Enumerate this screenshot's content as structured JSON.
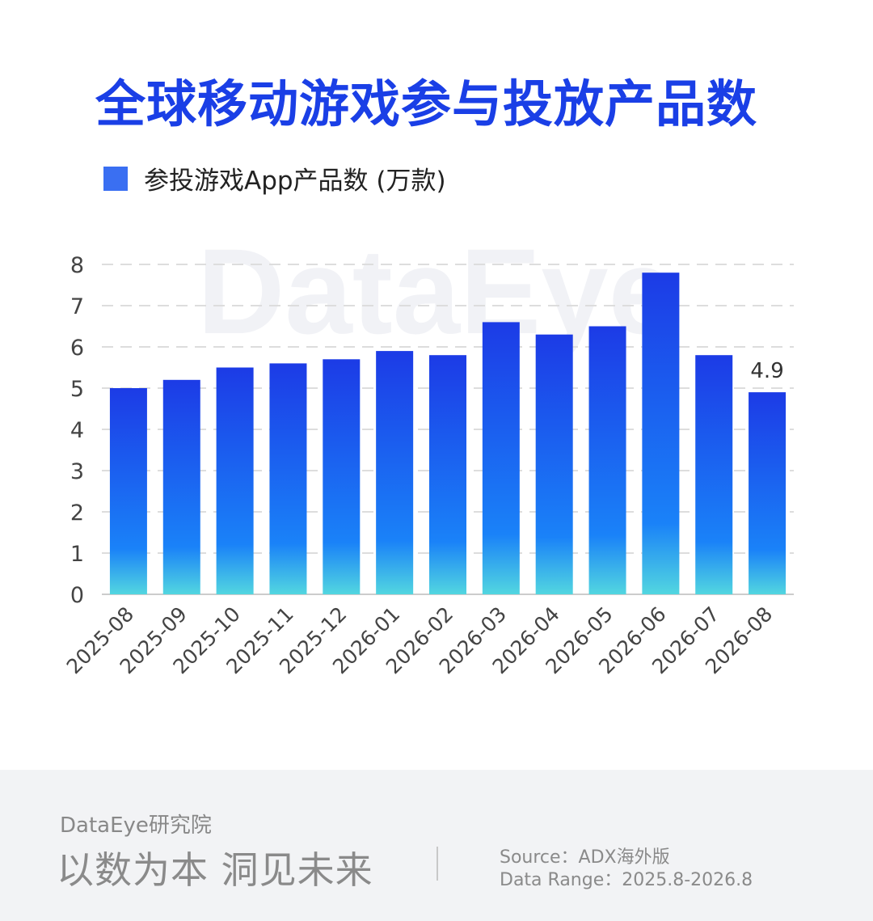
{
  "colors": {
    "title": "#1a3fe6",
    "legend_swatch": "#3a6ff2",
    "bar_top": "#1c3be6",
    "bar_mid": "#1a82f8",
    "bar_bottom": "#52d6e0",
    "grid": "#dddddd",
    "axis": "#cccccc",
    "tick_text": "#444444",
    "footer_bg": "#f2f3f5",
    "footer_text": "#8a8a8a",
    "watermark": "#f1f2f6"
  },
  "watermark": "DataEye",
  "footer": {
    "brand": "DataEye研究院",
    "slogan": "以数为本 洞见未来",
    "source": "Source：ADX海外版",
    "range": "Data Range：2025.8-2026.8"
  },
  "chart_data": {
    "type": "bar",
    "title": "全球移动游戏参与投放产品数",
    "categories": [
      "2025-08",
      "2025-09",
      "2025-10",
      "2025-11",
      "2025-12",
      "2026-01",
      "2026-02",
      "2026-03",
      "2026-04",
      "2026-05",
      "2026-06",
      "2026-07",
      "2026-08"
    ],
    "series": [
      {
        "name": "参投游戏App产品数 (万款)",
        "values": [
          5.0,
          5.2,
          5.5,
          5.6,
          5.7,
          5.9,
          5.8,
          6.6,
          6.3,
          6.5,
          7.8,
          5.8,
          4.9
        ]
      }
    ],
    "data_labels": [
      {
        "category": "2026-08",
        "text": "4.9"
      }
    ],
    "yticks": [
      "0",
      "1",
      "2",
      "3",
      "4",
      "5",
      "6",
      "7",
      "8"
    ],
    "ylim": [
      0,
      8
    ],
    "xlabel": "",
    "ylabel": "",
    "grid": true,
    "legend_position": "top-left"
  }
}
